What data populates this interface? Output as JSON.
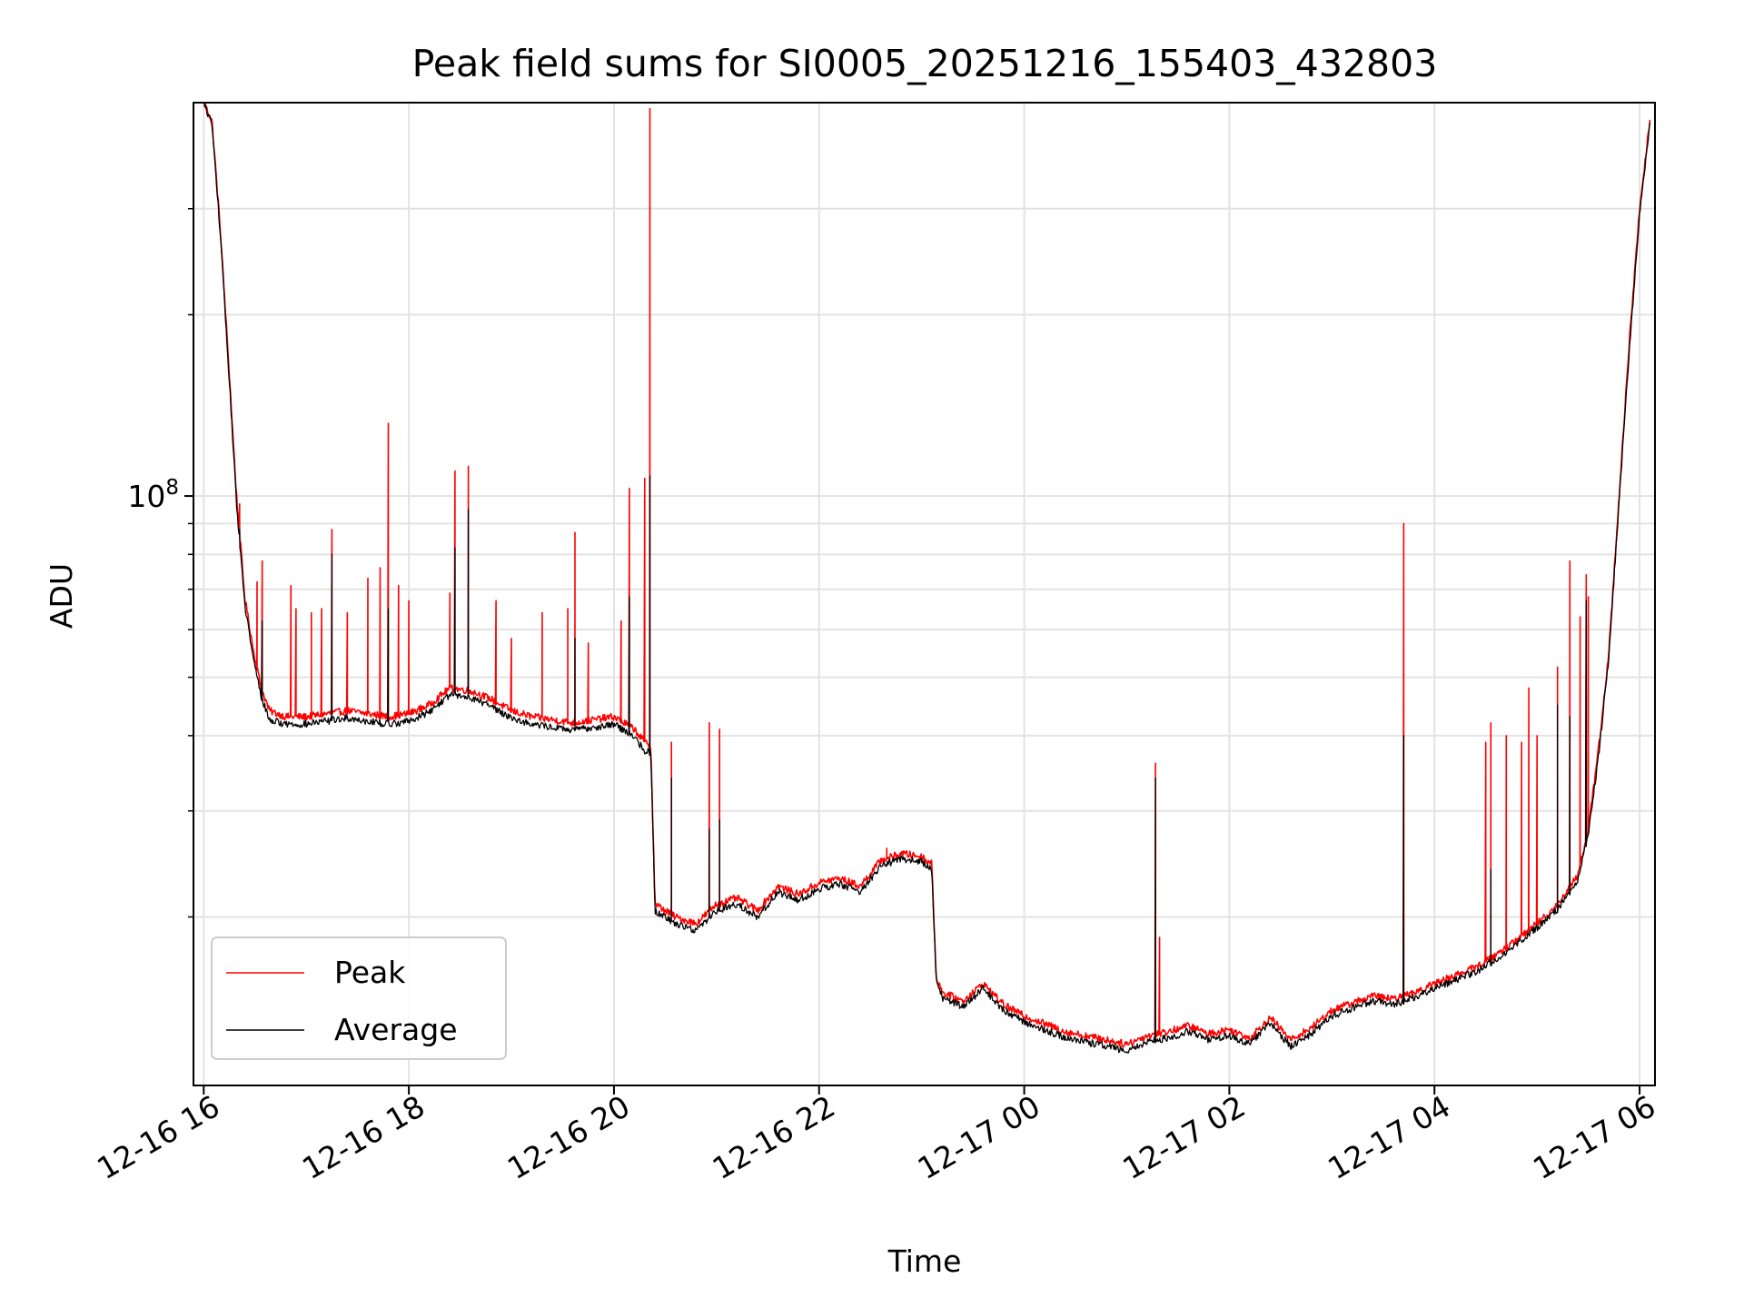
{
  "chart_data": {
    "type": "line",
    "title": "Peak field sums for SI0005_20251216_155403_432803",
    "xlabel": "Time",
    "ylabel": "ADU",
    "yscale": "log",
    "grid": true,
    "legend_position": "lower-left",
    "x_unit": "hours since 12-16 00:00",
    "xlim": [
      15.9,
      30.15
    ],
    "ylim": [
      10500000,
      450000000
    ],
    "x_ticks": [
      {
        "value": 16,
        "label": "12-16 16"
      },
      {
        "value": 18,
        "label": "12-16 18"
      },
      {
        "value": 20,
        "label": "12-16 20"
      },
      {
        "value": 22,
        "label": "12-16 22"
      },
      {
        "value": 24,
        "label": "12-17 00"
      },
      {
        "value": 26,
        "label": "12-17 02"
      },
      {
        "value": 28,
        "label": "12-17 04"
      },
      {
        "value": 30,
        "label": "12-17 06"
      }
    ],
    "y_major_tick": {
      "value": 100000000,
      "base": "10",
      "exponent": "8"
    },
    "y_minor_ticks": [
      20000000,
      30000000,
      40000000,
      50000000,
      60000000,
      70000000,
      80000000,
      90000000,
      200000000,
      300000000
    ],
    "series": [
      {
        "name": "Peak",
        "color": "#ff0000",
        "x": [
          16.0,
          16.08,
          16.16,
          16.24,
          16.32,
          16.4,
          16.48,
          16.56,
          16.64,
          16.8,
          17.0,
          17.2,
          17.4,
          17.6,
          17.8,
          18.0,
          18.2,
          18.4,
          18.6,
          18.8,
          19.0,
          19.2,
          19.4,
          19.6,
          19.8,
          20.0,
          20.2,
          20.3,
          20.36,
          20.4,
          20.6,
          20.8,
          21.0,
          21.2,
          21.4,
          21.6,
          21.8,
          22.0,
          22.2,
          22.4,
          22.6,
          22.8,
          23.0,
          23.1,
          23.14,
          23.2,
          23.4,
          23.6,
          23.8,
          24.0,
          24.2,
          24.4,
          24.6,
          24.8,
          25.0,
          25.2,
          25.4,
          25.6,
          25.8,
          26.0,
          26.2,
          26.4,
          26.6,
          26.8,
          27.0,
          27.2,
          27.4,
          27.6,
          27.8,
          28.0,
          28.2,
          28.4,
          28.6,
          28.8,
          29.0,
          29.2,
          29.4,
          29.5,
          29.6,
          29.7,
          29.8,
          29.9,
          30.0,
          30.1
        ],
        "y": [
          450000000,
          420000000,
          280000000,
          170000000,
          100000000,
          68000000,
          56000000,
          48000000,
          44000000,
          43000000,
          43000000,
          43500000,
          44000000,
          43500000,
          43000000,
          43500000,
          45000000,
          48000000,
          47500000,
          46000000,
          44000000,
          43000000,
          42500000,
          42000000,
          42500000,
          43000000,
          41000000,
          39000000,
          38500000,
          21000000,
          20000000,
          19500000,
          21000000,
          21500000,
          20500000,
          22500000,
          21800000,
          22800000,
          23200000,
          22500000,
          24800000,
          25500000,
          25200000,
          24500000,
          16000000,
          15000000,
          14500000,
          15500000,
          14300000,
          13700000,
          13300000,
          12900000,
          12700000,
          12500000,
          12300000,
          12700000,
          12900000,
          13200000,
          12800000,
          13000000,
          12600000,
          13600000,
          12500000,
          13100000,
          14000000,
          14400000,
          14800000,
          14600000,
          15000000,
          15500000,
          16000000,
          16500000,
          17300000,
          18300000,
          19500000,
          21000000,
          23500000,
          28000000,
          38000000,
          55000000,
          100000000,
          180000000,
          300000000,
          420000000
        ],
        "spikes": [
          {
            "x": 16.35,
            "y": 97000000
          },
          {
            "x": 16.52,
            "y": 72000000
          },
          {
            "x": 16.57,
            "y": 78000000
          },
          {
            "x": 16.85,
            "y": 71000000
          },
          {
            "x": 16.9,
            "y": 65000000
          },
          {
            "x": 17.05,
            "y": 64000000
          },
          {
            "x": 17.15,
            "y": 65000000
          },
          {
            "x": 17.25,
            "y": 88000000
          },
          {
            "x": 17.4,
            "y": 64000000
          },
          {
            "x": 17.6,
            "y": 73000000
          },
          {
            "x": 17.72,
            "y": 76000000
          },
          {
            "x": 17.8,
            "y": 132000000
          },
          {
            "x": 17.9,
            "y": 71000000
          },
          {
            "x": 18.0,
            "y": 67000000
          },
          {
            "x": 18.4,
            "y": 69000000
          },
          {
            "x": 18.45,
            "y": 110000000
          },
          {
            "x": 18.58,
            "y": 112000000
          },
          {
            "x": 18.85,
            "y": 67000000
          },
          {
            "x": 19.0,
            "y": 58000000
          },
          {
            "x": 19.3,
            "y": 64000000
          },
          {
            "x": 19.55,
            "y": 65000000
          },
          {
            "x": 19.62,
            "y": 87000000
          },
          {
            "x": 19.75,
            "y": 57000000
          },
          {
            "x": 20.07,
            "y": 62000000
          },
          {
            "x": 20.15,
            "y": 103000000
          },
          {
            "x": 20.3,
            "y": 107000000
          },
          {
            "x": 20.35,
            "y": 440000000
          },
          {
            "x": 20.56,
            "y": 39000000
          },
          {
            "x": 20.93,
            "y": 42000000
          },
          {
            "x": 21.03,
            "y": 41000000
          },
          {
            "x": 22.6,
            "y": 25000000
          },
          {
            "x": 22.66,
            "y": 26000000
          },
          {
            "x": 25.28,
            "y": 36000000
          },
          {
            "x": 25.32,
            "y": 18500000
          },
          {
            "x": 27.7,
            "y": 90000000
          },
          {
            "x": 28.5,
            "y": 39000000
          },
          {
            "x": 28.55,
            "y": 42000000
          },
          {
            "x": 28.7,
            "y": 40000000
          },
          {
            "x": 28.85,
            "y": 39000000
          },
          {
            "x": 28.92,
            "y": 48000000
          },
          {
            "x": 29.0,
            "y": 40000000
          },
          {
            "x": 29.2,
            "y": 52000000
          },
          {
            "x": 29.32,
            "y": 78000000
          },
          {
            "x": 29.42,
            "y": 63000000
          },
          {
            "x": 29.48,
            "y": 74000000
          },
          {
            "x": 29.5,
            "y": 68000000
          }
        ]
      },
      {
        "name": "Average",
        "color": "#000000",
        "x": [
          16.0,
          16.08,
          16.16,
          16.24,
          16.32,
          16.4,
          16.48,
          16.56,
          16.64,
          16.8,
          17.0,
          17.2,
          17.4,
          17.6,
          17.8,
          18.0,
          18.2,
          18.4,
          18.6,
          18.8,
          19.0,
          19.2,
          19.4,
          19.6,
          19.8,
          20.0,
          20.2,
          20.3,
          20.36,
          20.4,
          20.6,
          20.8,
          21.0,
          21.2,
          21.4,
          21.6,
          21.8,
          22.0,
          22.2,
          22.4,
          22.6,
          22.8,
          23.0,
          23.1,
          23.14,
          23.2,
          23.4,
          23.6,
          23.8,
          24.0,
          24.2,
          24.4,
          24.6,
          24.8,
          25.0,
          25.2,
          25.4,
          25.6,
          25.8,
          26.0,
          26.2,
          26.4,
          26.6,
          26.8,
          27.0,
          27.2,
          27.4,
          27.6,
          27.8,
          28.0,
          28.2,
          28.4,
          28.6,
          28.8,
          29.0,
          29.2,
          29.4,
          29.5,
          29.6,
          29.7,
          29.8,
          29.9,
          30.0,
          30.1
        ],
        "y": [
          450000000,
          415000000,
          275000000,
          165000000,
          97000000,
          66000000,
          54000000,
          46500000,
          42500000,
          41800000,
          41800000,
          42300000,
          42800000,
          42300000,
          41800000,
          42300000,
          43800000,
          46800000,
          46300000,
          44800000,
          42800000,
          41800000,
          41300000,
          40800000,
          41300000,
          41800000,
          39800000,
          37800000,
          37300000,
          20500000,
          19500000,
          19000000,
          20500000,
          21000000,
          20000000,
          22000000,
          21300000,
          22300000,
          22700000,
          22000000,
          24300000,
          25000000,
          24700000,
          24000000,
          15700000,
          14700000,
          14200000,
          15200000,
          14000000,
          13400000,
          13000000,
          12600000,
          12400000,
          12200000,
          12000000,
          12400000,
          12600000,
          12900000,
          12500000,
          12700000,
          12300000,
          13300000,
          12200000,
          12800000,
          13700000,
          14100000,
          14500000,
          14300000,
          14700000,
          15200000,
          15700000,
          16200000,
          17000000,
          18000000,
          19200000,
          20600000,
          23000000,
          27500000,
          37000000,
          54000000,
          98000000,
          175000000,
          295000000,
          415000000
        ],
        "spikes": [
          {
            "x": 16.35,
            "y": 88000000
          },
          {
            "x": 16.57,
            "y": 62000000
          },
          {
            "x": 17.25,
            "y": 80000000
          },
          {
            "x": 17.8,
            "y": 65000000
          },
          {
            "x": 18.45,
            "y": 82000000
          },
          {
            "x": 18.58,
            "y": 95000000
          },
          {
            "x": 19.62,
            "y": 58000000
          },
          {
            "x": 20.15,
            "y": 68000000
          },
          {
            "x": 20.35,
            "y": 108000000
          },
          {
            "x": 20.56,
            "y": 34000000
          },
          {
            "x": 20.93,
            "y": 28000000
          },
          {
            "x": 21.03,
            "y": 29000000
          },
          {
            "x": 25.28,
            "y": 34000000
          },
          {
            "x": 27.7,
            "y": 40000000
          },
          {
            "x": 28.55,
            "y": 24000000
          },
          {
            "x": 29.2,
            "y": 45000000
          },
          {
            "x": 29.32,
            "y": 43000000
          },
          {
            "x": 29.48,
            "y": 67000000
          }
        ]
      }
    ]
  }
}
